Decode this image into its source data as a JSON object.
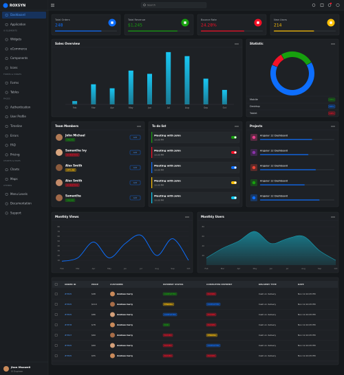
{
  "header": {
    "brand": "ROXSYN",
    "search_placeholder": "Search"
  },
  "sidebar": {
    "groups": [
      {
        "items": [
          "Dashboard",
          "Application"
        ]
      },
      {
        "heading": "UI ELEMENTS",
        "items": [
          "Widgets",
          "eCommerce",
          "Components",
          "Icons"
        ]
      },
      {
        "heading": "FORMS & TABLES",
        "items": [
          "Forms",
          "Tables"
        ]
      },
      {
        "heading": "PAGES",
        "items": [
          "Authentication",
          "User Profile",
          "Timeline",
          "Errors",
          "FAQ",
          "Pricing"
        ]
      },
      {
        "heading": "CHARTS & MAPS",
        "items": [
          "Charts",
          "Maps"
        ]
      },
      {
        "heading": "OTHERS",
        "items": [
          "Menu Levels",
          "Documentation",
          "Support"
        ]
      }
    ],
    "user": {
      "name": "Jhon Maxwell",
      "role": "UI Engineer"
    }
  },
  "stats": [
    {
      "label": "Total Orders",
      "value": 248,
      "color": "#0d6efd",
      "progress": 75
    },
    {
      "label": "Total Revenue",
      "value": "$1,245",
      "color": "#17a00e",
      "progress": 80
    },
    {
      "label": "Bounce Rate",
      "value": "24.28%",
      "color": "#f41127",
      "progress": 70
    },
    {
      "label": "New Users",
      "value": 214,
      "color": "#ffc107",
      "progress": 65
    }
  ],
  "chart_data": [
    {
      "type": "bar",
      "title": "Sales Overview",
      "categories": [
        "Feb",
        "Mar",
        "Apr",
        "May",
        "Jun",
        "Jul",
        "Aug",
        "Sep",
        "Oct"
      ],
      "values": [
        4,
        25,
        20,
        42,
        38,
        65,
        60,
        32,
        18
      ],
      "ylim": [
        0,
        70
      ],
      "color": "#18c6f2"
    },
    {
      "type": "donut",
      "title": "Statistic",
      "categories": [
        "Mobile",
        "Desktop",
        "Tablet"
      ],
      "values": [
        25,
        65,
        10
      ],
      "value_labels": [
        "25%",
        "65%",
        "10%"
      ],
      "colors": [
        "#17a00e",
        "#0d6efd",
        "#f41127"
      ]
    },
    {
      "type": "line",
      "title": "Monthly Views",
      "categories": [
        "Feb",
        "Mar",
        "Apr",
        "May",
        "Jun",
        "Jul",
        "Aug",
        "Sep",
        "Oct"
      ],
      "values": [
        8,
        15,
        48,
        15,
        45,
        62,
        20,
        55,
        10
      ],
      "ylim": [
        0,
        80
      ],
      "yticks": [
        10,
        20,
        30,
        40,
        50,
        60,
        70,
        80
      ],
      "color": "#0d6efd"
    },
    {
      "type": "area",
      "title": "Monthly Users",
      "categories": [
        "Feb",
        "Mar",
        "Apr",
        "May",
        "Jun",
        "Jul",
        "Aug",
        "Sep",
        "Oct"
      ],
      "values": [
        15,
        35,
        50,
        70,
        45,
        55,
        60,
        30,
        10
      ],
      "ylim": [
        0,
        80
      ],
      "yticks": [
        20,
        40,
        60,
        80
      ],
      "color": "#17a2b8"
    }
  ],
  "team": {
    "title": "Team Members",
    "button": "Add",
    "members": [
      {
        "name": "John Michael",
        "status": "ONLINE",
        "color": "#17a00e"
      },
      {
        "name": "Samantha Ivy",
        "status": "IN MEETING",
        "color": "#f41127"
      },
      {
        "name": "Alex Smith",
        "status": "OFFLINE",
        "color": "#ffc107"
      },
      {
        "name": "Alex Smith",
        "status": "IN MEETING",
        "color": "#f41127"
      },
      {
        "name": "Samantha",
        "status": "ONLINE",
        "color": "#17a00e"
      }
    ]
  },
  "todo": {
    "title": "To do list",
    "items": [
      {
        "task": "Meeting with John",
        "time": "10:00 PM",
        "color": "#17a00e"
      },
      {
        "task": "Meeting with John",
        "time": "10:00 PM",
        "color": "#f41127"
      },
      {
        "task": "Meeting with John",
        "time": "10:00 PM",
        "color": "#0d6efd"
      },
      {
        "task": "Meeting with John",
        "time": "10:00 PM",
        "color": "#ffc107"
      },
      {
        "task": "Meeting with John",
        "time": "10:00 PM",
        "color": "#0dcaf0"
      }
    ]
  },
  "projects": {
    "title": "Projects",
    "items": [
      {
        "name": "Angular 12 Dashboard",
        "progress": 70,
        "color": "#e83e8c"
      },
      {
        "name": "Angular 12 Dashboard",
        "progress": 65,
        "color": "#8932a8"
      },
      {
        "name": "Angular 12 Dashboard",
        "progress": 75,
        "color": "#ea4335"
      },
      {
        "name": "Angular 12 Dashboard",
        "progress": 60,
        "color": "#17a00e"
      },
      {
        "name": "Angular 12 Dashboard",
        "progress": 80,
        "color": "#0d6efd"
      }
    ]
  },
  "orders": {
    "columns": [
      "ORDER ID",
      "PRICE",
      "CUSTOMER",
      "PAYMENT STATUS",
      "COMPLETED PAYMENT",
      "DELIVERY TYPE",
      "DATE"
    ],
    "rows": [
      {
        "id": "#7845",
        "price": "$98",
        "customer": "Andrew Carry",
        "payment": {
          "text": "COMPLETED",
          "color": "#17a00e"
        },
        "completed": {
          "text": "PAUSED",
          "color": "#f41127"
        },
        "delivery": "Cash on delivery",
        "date": "Nov 12,10:45 PM"
      },
      {
        "id": "#7845",
        "price": "$110",
        "customer": "Andrew Carry",
        "payment": {
          "text": "PENDING",
          "color": "#ffc107"
        },
        "completed": {
          "text": "COMPLETED",
          "color": "#0d6efd"
        },
        "delivery": "Cash on delivery",
        "date": "Nov 12,10:45 PM"
      },
      {
        "id": "#7845",
        "price": "$86",
        "customer": "Andrew Carry",
        "payment": {
          "text": "COMPLETED",
          "color": "#0d6efd"
        },
        "completed": {
          "text": "PAUSED",
          "color": "#f41127"
        },
        "delivery": "Cash on delivery",
        "date": "Nov 12,10:45 PM"
      },
      {
        "id": "#7878",
        "price": "$78",
        "customer": "Andrew Carry",
        "payment": {
          "text": "PAID",
          "color": "#17a00e"
        },
        "completed": {
          "text": "PAUSED",
          "color": "#f41127"
        },
        "delivery": "Cash on delivery",
        "date": "Nov 12,10:45 PM"
      },
      {
        "id": "#7847",
        "price": "$69",
        "customer": "Andrew Carry",
        "payment": {
          "text": "PAUSED",
          "color": "#f41127"
        },
        "completed": {
          "text": "PENDING",
          "color": "#ffc107"
        },
        "delivery": "Cash on delivery",
        "date": "Nov 12,10:45 PM"
      },
      {
        "id": "#7845",
        "price": "$69",
        "customer": "Andrew Carry",
        "payment": {
          "text": "PAUSED",
          "color": "#f41127"
        },
        "completed": {
          "text": "COMPLETED",
          "color": "#0d6efd"
        },
        "delivery": "Cash on delivery",
        "date": "Nov 12,10:45 PM"
      },
      {
        "id": "#7845",
        "price": "$55",
        "customer": "Andrew Carry",
        "payment": {
          "text": "PAUSED",
          "color": "#f41127"
        },
        "completed": {
          "text": "PAUSED",
          "color": "#f41127"
        },
        "delivery": "Cash on delivery",
        "date": "Nov 12,10:45 PM"
      }
    ]
  }
}
